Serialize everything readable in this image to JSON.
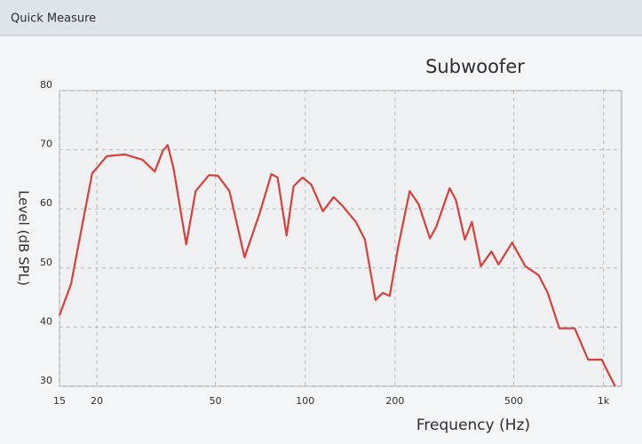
{
  "window_title": "Quick Measure",
  "chart_data": {
    "type": "line",
    "title": "Subwoofer",
    "xlabel": "Frequency (Hz)",
    "ylabel": "Level (dB SPL)",
    "xscale": "log",
    "grid": true,
    "color": "#d9403a",
    "x": [
      15,
      16.4,
      18.2,
      19.3,
      21.6,
      24.9,
      28.5,
      31.3,
      33.3,
      34.6,
      36.2,
      39.9,
      42.9,
      47.6,
      51,
      55.7,
      62.6,
      70.4,
      77,
      80.8,
      86.6,
      91.4,
      97.9,
      104.8,
      114.6,
      124.5,
      133.4,
      147.9,
      158.5,
      172,
      182,
      192,
      205,
      224,
      240,
      262,
      275,
      305,
      320,
      343,
      362,
      388,
      421,
      445,
      494,
      547,
      606,
      650,
      711,
      801,
      888,
      986,
      1094
    ],
    "values": [
      42,
      47.3,
      59.3,
      66,
      68.9,
      69.2,
      68.3,
      66.3,
      69.8,
      70.8,
      66.8,
      54,
      63,
      65.7,
      65.6,
      63,
      51.8,
      59.3,
      65.9,
      65.3,
      55.5,
      63.8,
      65.3,
      64.1,
      59.6,
      62,
      60.5,
      57.8,
      54.8,
      44.6,
      45.8,
      45.3,
      53.6,
      63,
      60.8,
      55,
      57,
      63.5,
      61.5,
      54.8,
      57.8,
      50.3,
      52.8,
      50.6,
      54.3,
      50.3,
      48.8,
      45.8,
      39.8,
      39.8,
      34.5,
      34.5,
      30
    ],
    "xlim": [
      15,
      1150
    ],
    "ylim": [
      30,
      80
    ],
    "xticks": [
      15,
      20,
      50,
      100,
      200,
      500,
      {
        "value": 1000,
        "label": "1k"
      }
    ],
    "yticks": [
      30,
      40,
      50,
      60,
      70,
      80
    ]
  }
}
